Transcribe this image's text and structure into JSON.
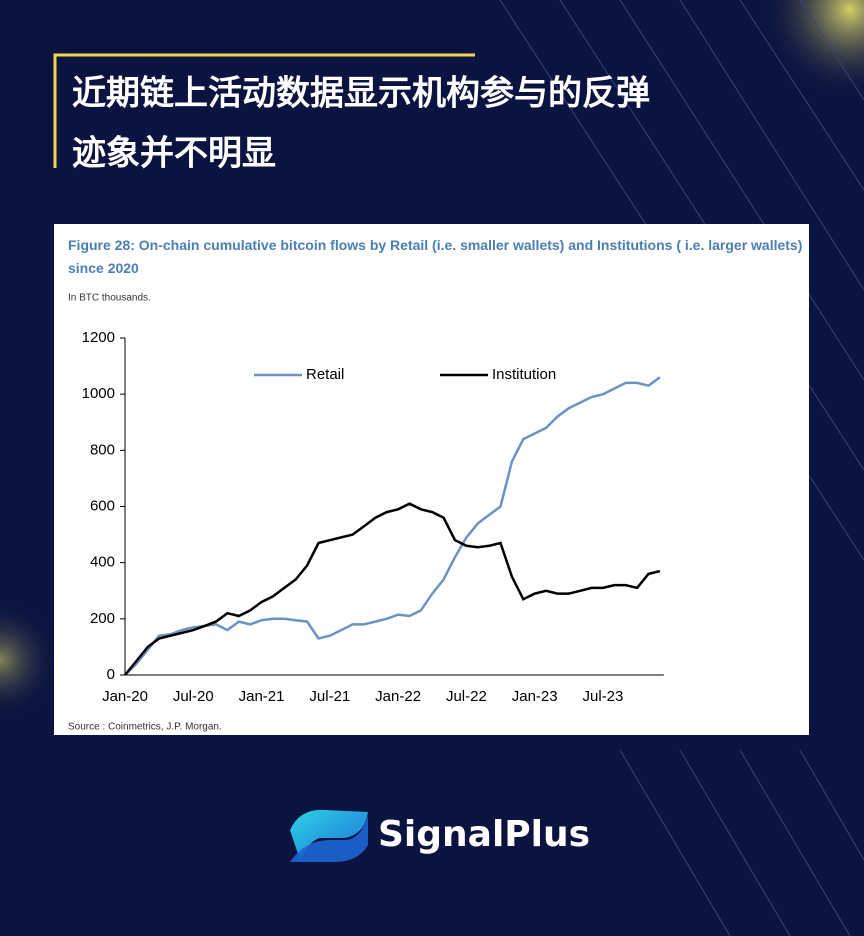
{
  "header": {
    "title": [
      "近期链上活动数据显示机构参与的反弹",
      "迹象并不明显"
    ]
  },
  "chart_data": {
    "type": "line",
    "title": "Figure 28: On-chain cumulative bitcoin flows by Retail (i.e. smaller wallets) and Institutions ( i.e. larger wallets) since 2020",
    "subtitle": "In BTC thousands.",
    "source": "Source : Coinmetrics, J.P. Morgan.",
    "categories": [
      "Jan-20",
      null,
      null,
      null,
      null,
      null,
      "Jul-20",
      null,
      null,
      null,
      null,
      null,
      "Jan-21",
      null,
      null,
      null,
      null,
      null,
      "Jul-21",
      null,
      null,
      null,
      null,
      null,
      "Jan-22",
      null,
      null,
      null,
      null,
      null,
      "Jul-22",
      null,
      null,
      null,
      null,
      null,
      "Jan-23",
      null,
      null,
      null,
      null,
      null,
      "Jul-23",
      null,
      null,
      null,
      null,
      null
    ],
    "series": [
      {
        "name": "Retail",
        "color": "#6a93c3",
        "values": [
          0,
          40,
          90,
          140,
          145,
          160,
          170,
          175,
          180,
          160,
          190,
          180,
          195,
          200,
          200,
          195,
          190,
          130,
          140,
          160,
          180,
          180,
          190,
          200,
          215,
          210,
          230,
          290,
          340,
          420,
          490,
          540,
          570,
          600,
          760,
          840,
          860,
          880,
          920,
          950,
          970,
          990,
          1000,
          1020,
          1040,
          1040,
          1030,
          1060
        ]
      },
      {
        "name": "Institution",
        "color": "#000000",
        "values": [
          0,
          50,
          100,
          130,
          140,
          150,
          160,
          175,
          190,
          220,
          210,
          230,
          260,
          280,
          310,
          340,
          390,
          470,
          480,
          490,
          500,
          530,
          560,
          580,
          590,
          610,
          590,
          580,
          560,
          480,
          460,
          455,
          460,
          470,
          350,
          270,
          290,
          300,
          290,
          290,
          300,
          310,
          310,
          320,
          320,
          310,
          360,
          370
        ]
      }
    ],
    "ylim": [
      0,
      1200
    ],
    "yticks": [
      0,
      200,
      400,
      600,
      800,
      1000,
      1200
    ],
    "grid": false
  },
  "brand": {
    "name": "SignalPlus"
  }
}
